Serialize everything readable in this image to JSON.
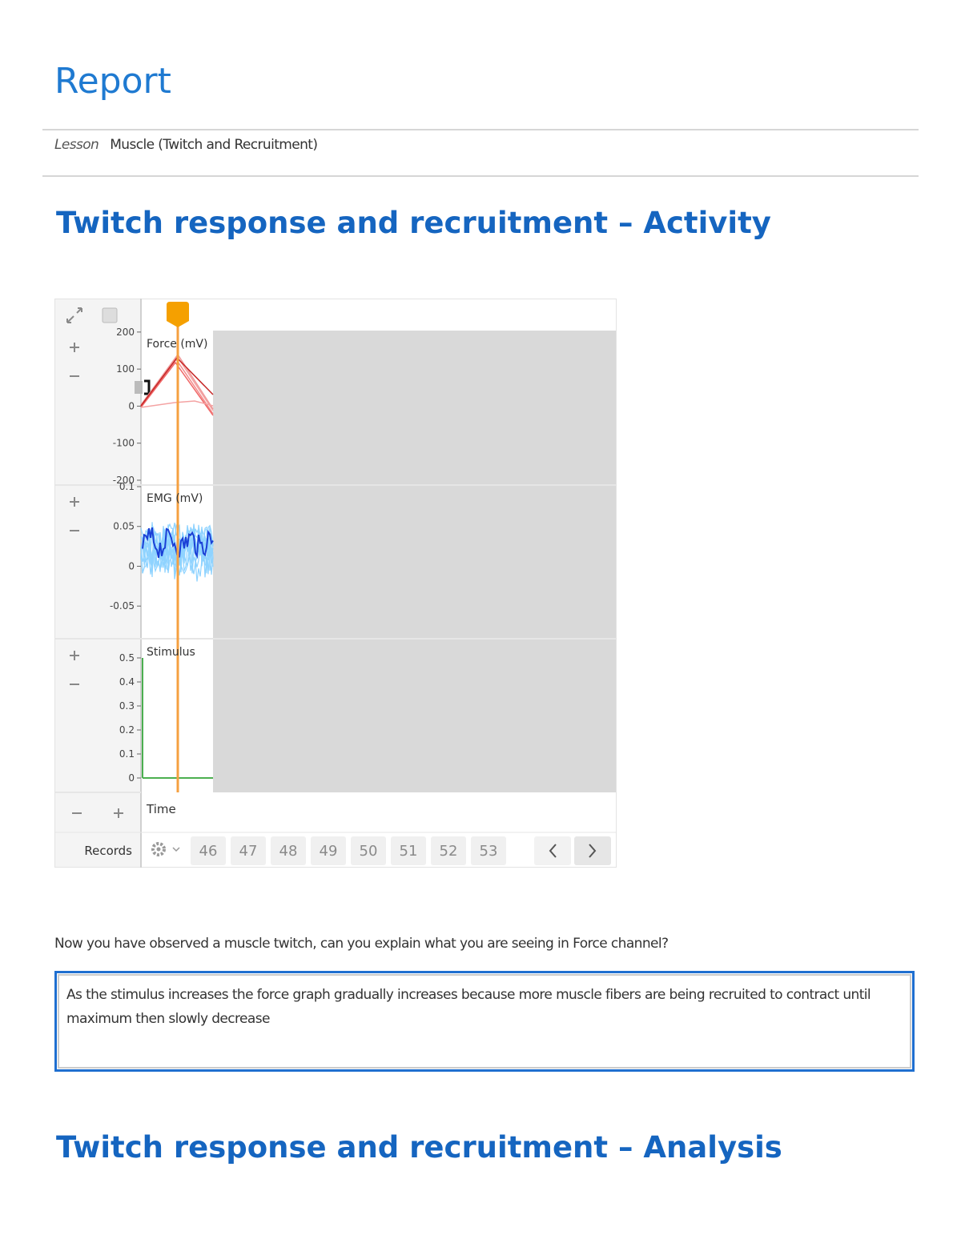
{
  "header": {
    "title": "Report"
  },
  "lesson": {
    "label": "Lesson",
    "value": "Muscle (Twitch and Recruitment)"
  },
  "activity": {
    "heading": "Twitch response and recruitment – Activity",
    "viewer": {
      "channels": [
        {
          "name": "Force (mV)",
          "ylim": [
            -213,
            204
          ],
          "yticks": [
            200,
            100,
            0,
            -100,
            -200
          ]
        },
        {
          "name": "EMG (mV)",
          "ylim": [
            -0.091,
            0.102
          ],
          "yticks": [
            0.1,
            0.05,
            0,
            -0.05
          ]
        },
        {
          "name": "Stimulus",
          "ylim": [
            -0.06,
            0.58
          ],
          "yticks": [
            0.5,
            0.4,
            0.3,
            0.2,
            0.1,
            0
          ]
        }
      ],
      "time_label": "Time",
      "records_label": "Records",
      "records": [
        46,
        47,
        48,
        49,
        50,
        51,
        52,
        53
      ]
    },
    "question": "Now you have observed a muscle twitch, can you explain what you are seeing in Force channel?",
    "answer": "As the stimulus increases the force  graph gradually increases because more muscle fibers are being recruited to contract until maximum then slowly decrease"
  },
  "analysis": {
    "heading": "Twitch response and recruitment – Analysis"
  }
}
